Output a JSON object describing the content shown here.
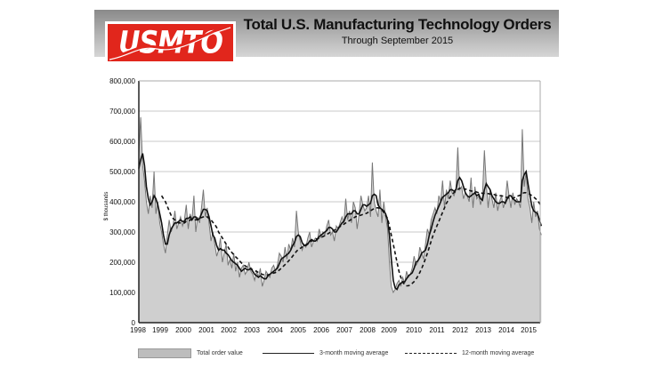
{
  "header": {
    "logo_text": "USMTO",
    "title": "Total U.S. Manufacturing Technology Orders",
    "subtitle": "Through September 2015"
  },
  "colors": {
    "logo_red": "#e1261c",
    "area_fill": "#cfcfcf",
    "total_line": "#777777",
    "avg_line": "#111111",
    "gridline": "#c8c8c8"
  },
  "legend": {
    "items": [
      {
        "label": "Total order value",
        "style": "area"
      },
      {
        "label": "3-month moving average",
        "style": "solid"
      },
      {
        "label": "12-month moving average",
        "style": "dashed"
      }
    ]
  },
  "chart_data": {
    "type": "area",
    "title": "Total U.S. Manufacturing Technology Orders",
    "subtitle": "Through September 2015",
    "xlabel": "",
    "ylabel": "$ thousands",
    "ylim": [
      0,
      800000
    ],
    "yticks": [
      0,
      100000,
      200000,
      300000,
      400000,
      500000,
      600000,
      700000,
      800000
    ],
    "ytick_labels": [
      "0",
      "100,000",
      "200,000",
      "300,000",
      "400,000",
      "500,000",
      "600,000",
      "700,000",
      "800,000"
    ],
    "xticks": [
      "1998",
      "1999",
      "2000",
      "2001",
      "2002",
      "2003",
      "2004",
      "2005",
      "2006",
      "2007",
      "2008",
      "2009",
      "2010",
      "2011",
      "2012",
      "2013",
      "2014",
      "2015"
    ],
    "x_start": "1998-01",
    "x_end": "2015-09",
    "frequency": "monthly",
    "grid": true,
    "legend_position": "bottom",
    "series": [
      {
        "name": "Total order value",
        "style": "area",
        "values": [
          560,
          680,
          520,
          470,
          400,
          360,
          420,
          380,
          500,
          360,
          400,
          330,
          300,
          260,
          230,
          290,
          340,
          300,
          320,
          370,
          310,
          330,
          350,
          320,
          340,
          390,
          310,
          360,
          340,
          420,
          300,
          350,
          330,
          380,
          440,
          350,
          380,
          330,
          270,
          300,
          260,
          220,
          240,
          280,
          200,
          230,
          260,
          190,
          210,
          180,
          230,
          170,
          200,
          150,
          180,
          190,
          160,
          170,
          200,
          170,
          160,
          140,
          170,
          150,
          180,
          120,
          140,
          170,
          160,
          150,
          180,
          190,
          170,
          190,
          230,
          220,
          200,
          250,
          210,
          260,
          240,
          280,
          250,
          370,
          300,
          270,
          240,
          260,
          250,
          280,
          300,
          250,
          270,
          280,
          270,
          310,
          280,
          300,
          290,
          320,
          340,
          290,
          300,
          270,
          320,
          310,
          330,
          350,
          330,
          410,
          340,
          370,
          330,
          400,
          380,
          310,
          360,
          420,
          390,
          370,
          380,
          420,
          350,
          530,
          400,
          370,
          350,
          440,
          330,
          400,
          350,
          310,
          200,
          120,
          100,
          110,
          130,
          140,
          120,
          150,
          130,
          170,
          150,
          160,
          180,
          220,
          190,
          200,
          250,
          230,
          210,
          260,
          310,
          290,
          340,
          360,
          380,
          360,
          420,
          400,
          470,
          380,
          440,
          410,
          470,
          430,
          420,
          440,
          580,
          440,
          450,
          410,
          430,
          420,
          400,
          480,
          380,
          450,
          410,
          420,
          390,
          420,
          570,
          460,
          380,
          440,
          410,
          380,
          430,
          370,
          400,
          420,
          380,
          400,
          470,
          420,
          380,
          430,
          390,
          410,
          400,
          380,
          640,
          450,
          500,
          410,
          380,
          330,
          400,
          350,
          370,
          310,
          290
        ]
      },
      {
        "name": "3-month moving average",
        "style": "solid",
        "values": [
          510,
          540,
          560,
          520,
          450,
          410,
          390,
          400,
          420,
          410,
          390,
          360,
          330,
          290,
          260,
          260,
          290,
          310,
          320,
          330,
          330,
          335,
          340,
          335,
          335,
          345,
          345,
          350,
          340,
          350,
          350,
          340,
          345,
          360,
          375,
          375,
          370,
          350,
          320,
          290,
          280,
          255,
          240,
          245,
          240,
          240,
          230,
          225,
          215,
          205,
          200,
          195,
          190,
          180,
          170,
          175,
          180,
          175,
          175,
          180,
          170,
          160,
          155,
          150,
          155,
          150,
          145,
          145,
          155,
          160,
          165,
          170,
          175,
          180,
          195,
          210,
          215,
          220,
          225,
          230,
          240,
          255,
          265,
          285,
          290,
          285,
          265,
          255,
          255,
          260,
          270,
          275,
          270,
          270,
          275,
          285,
          290,
          295,
          300,
          305,
          315,
          315,
          310,
          300,
          300,
          310,
          320,
          330,
          335,
          350,
          360,
          360,
          360,
          370,
          370,
          360,
          360,
          375,
          390,
          390,
          385,
          390,
          395,
          420,
          425,
          420,
          390,
          380,
          375,
          370,
          360,
          340,
          290,
          210,
          140,
          115,
          110,
          125,
          130,
          135,
          135,
          145,
          155,
          160,
          165,
          180,
          200,
          205,
          215,
          230,
          235,
          240,
          260,
          290,
          310,
          335,
          355,
          370,
          385,
          400,
          415,
          420,
          425,
          430,
          440,
          440,
          435,
          440,
          470,
          480,
          470,
          450,
          430,
          420,
          415,
          420,
          425,
          430,
          420,
          425,
          410,
          405,
          440,
          460,
          450,
          440,
          420,
          410,
          400,
          395,
          395,
          400,
          400,
          395,
          410,
          420,
          420,
          410,
          405,
          400,
          400,
          400,
          470,
          490,
          500,
          460,
          420,
          385,
          370,
          365,
          360,
          340,
          320
        ]
      },
      {
        "name": "12-month moving average",
        "style": "dashed",
        "values": [
          null,
          null,
          null,
          null,
          null,
          null,
          null,
          null,
          null,
          null,
          null,
          null,
          420,
          410,
          400,
          385,
          370,
          355,
          345,
          340,
          335,
          330,
          330,
          330,
          330,
          335,
          335,
          340,
          340,
          340,
          340,
          342,
          345,
          348,
          350,
          352,
          350,
          345,
          340,
          332,
          325,
          315,
          300,
          290,
          280,
          270,
          260,
          250,
          240,
          232,
          225,
          218,
          212,
          205,
          198,
          192,
          188,
          184,
          180,
          178,
          175,
          172,
          170,
          166,
          163,
          160,
          158,
          158,
          158,
          160,
          162,
          164,
          166,
          170,
          174,
          180,
          186,
          192,
          198,
          205,
          212,
          220,
          228,
          236,
          242,
          246,
          250,
          254,
          258,
          262,
          266,
          270,
          274,
          276,
          278,
          280,
          282,
          285,
          288,
          292,
          296,
          300,
          304,
          306,
          310,
          314,
          318,
          322,
          326,
          330,
          334,
          338,
          342,
          346,
          350,
          352,
          354,
          356,
          358,
          360,
          362,
          366,
          370,
          374,
          378,
          380,
          380,
          378,
          372,
          365,
          355,
          345,
          320,
          290,
          260,
          230,
          200,
          170,
          150,
          135,
          125,
          122,
          122,
          125,
          130,
          136,
          144,
          154,
          166,
          180,
          195,
          212,
          230,
          250,
          270,
          290,
          305,
          320,
          335,
          350,
          365,
          380,
          395,
          405,
          415,
          425,
          430,
          435,
          440,
          445,
          445,
          444,
          442,
          440,
          438,
          436,
          435,
          434,
          432,
          430,
          430,
          428,
          428,
          428,
          427,
          426,
          425,
          424,
          422,
          420,
          420,
          420,
          418,
          416,
          414,
          412,
          412,
          412,
          414,
          418,
          420,
          422,
          428,
          430,
          430,
          428,
          425,
          420,
          416,
          410,
          405,
          395,
          385
        ]
      }
    ]
  }
}
